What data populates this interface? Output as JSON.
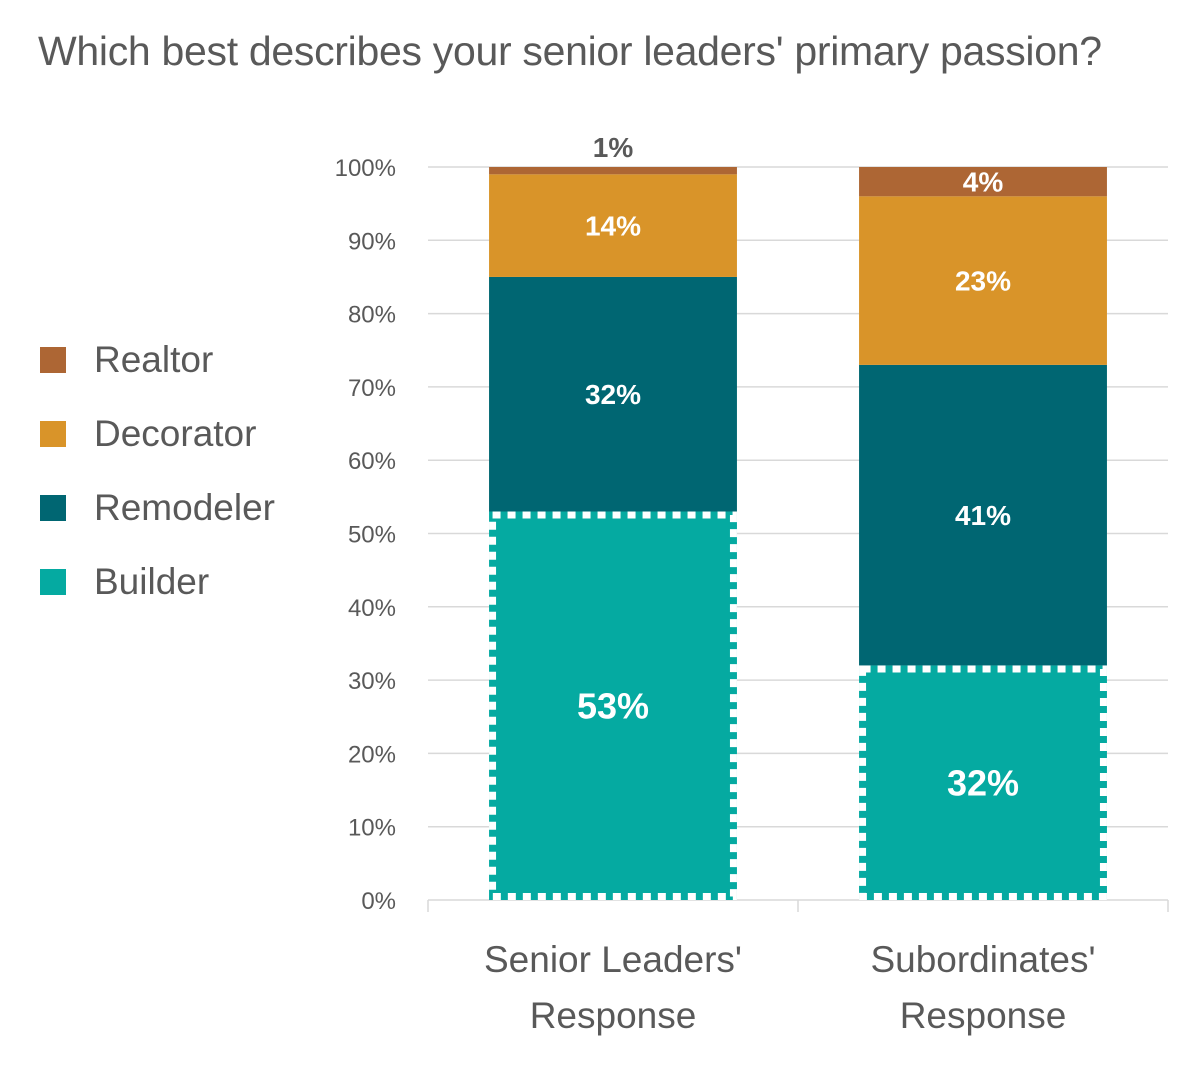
{
  "title": "Which best describes your senior leaders' primary passion?",
  "legend": {
    "items": [
      {
        "label": "Realtor",
        "color": "#ad6634"
      },
      {
        "label": "Decorator",
        "color": "#d99429"
      },
      {
        "label": "Remodeler",
        "color": "#006672"
      },
      {
        "label": "Builder",
        "color": "#05aaa1"
      }
    ]
  },
  "chart_data": {
    "type": "bar",
    "stacked": true,
    "percent": true,
    "title": "Which best describes your senior leaders' primary passion?",
    "categories": [
      [
        "Senior Leaders'",
        "Response"
      ],
      [
        "Subordinates'",
        "Response"
      ]
    ],
    "series": [
      {
        "name": "Builder",
        "color": "#05aaa1",
        "values": [
          53,
          32
        ],
        "labels": [
          "53%",
          "32%"
        ]
      },
      {
        "name": "Remodeler",
        "color": "#006672",
        "values": [
          32,
          41
        ],
        "labels": [
          "32%",
          "41%"
        ]
      },
      {
        "name": "Decorator",
        "color": "#d99429",
        "values": [
          14,
          23
        ],
        "labels": [
          "14%",
          "23%"
        ]
      },
      {
        "name": "Realtor",
        "color": "#ad6634",
        "values": [
          1,
          4
        ],
        "labels": [
          "1%",
          "4%"
        ]
      }
    ],
    "yticks": [
      "0%",
      "10%",
      "20%",
      "30%",
      "40%",
      "50%",
      "60%",
      "70%",
      "80%",
      "90%",
      "100%"
    ],
    "ylim": [
      0,
      100
    ],
    "grid": true,
    "legend_position": "left",
    "highlighted_series": "Builder"
  }
}
